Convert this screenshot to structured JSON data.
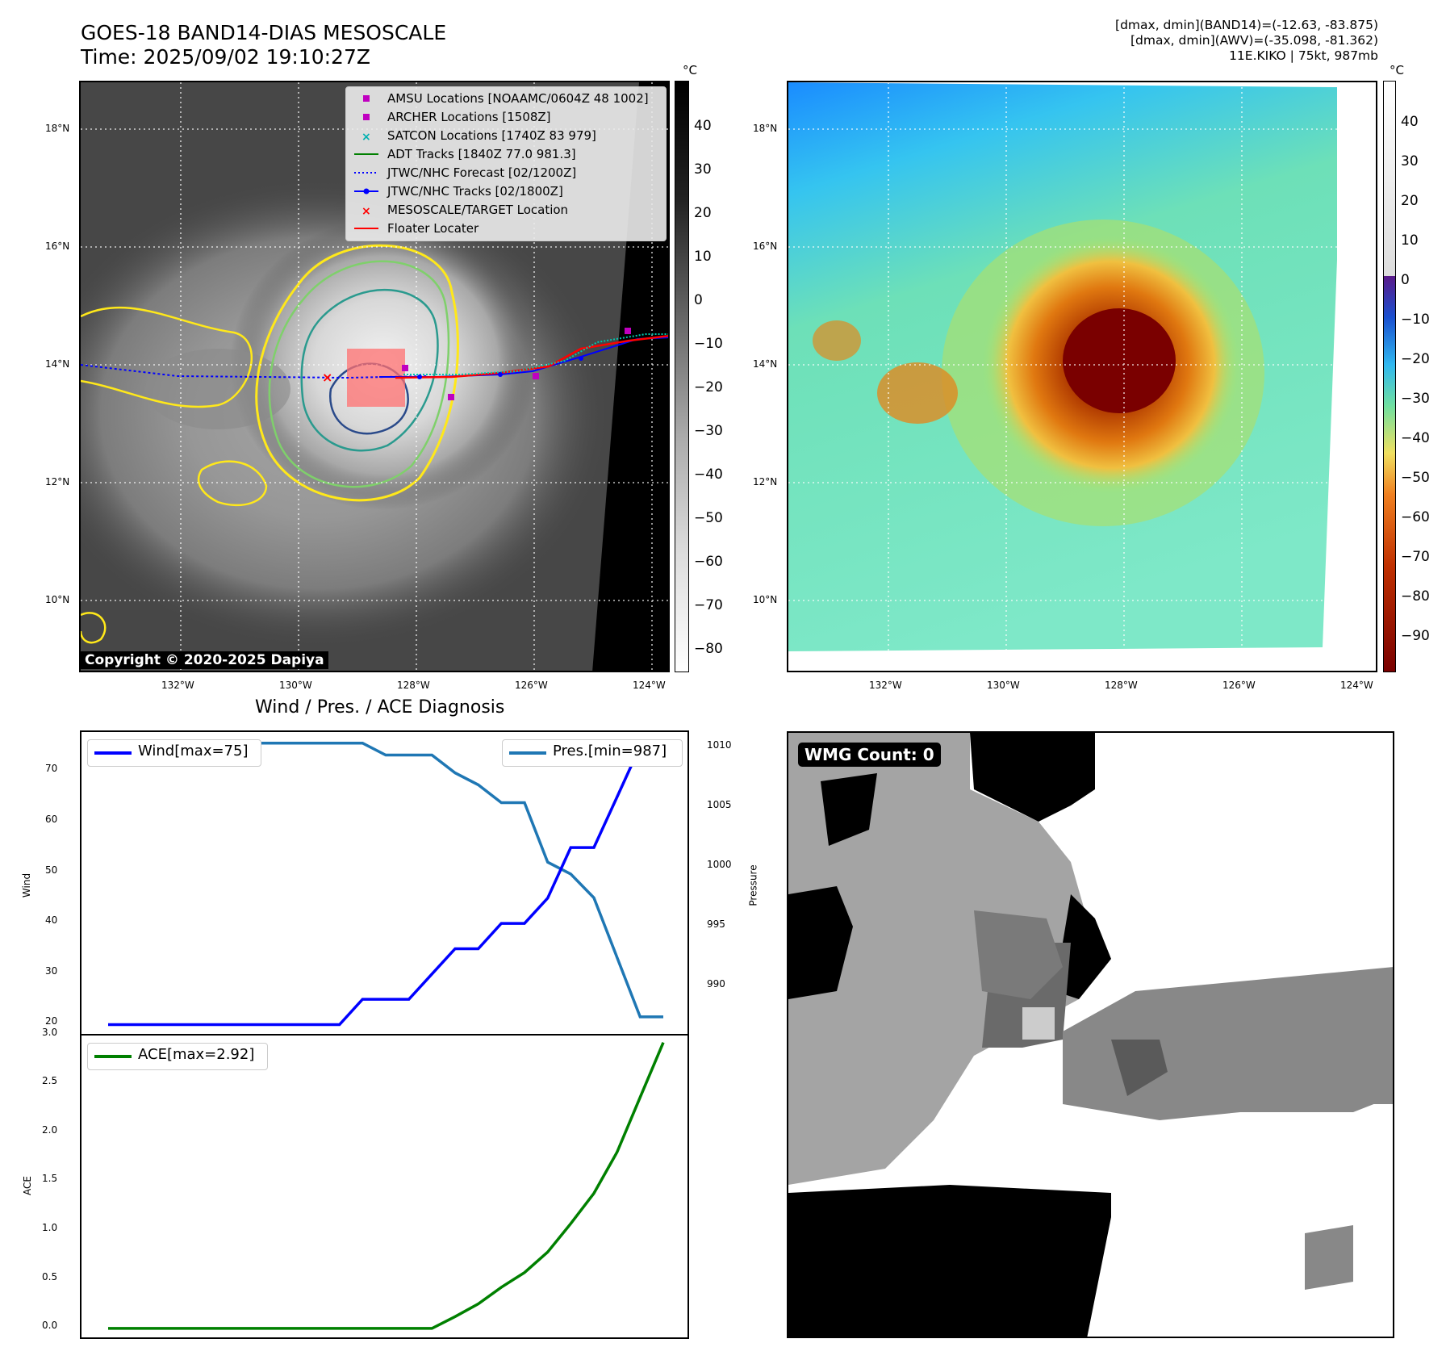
{
  "header": {
    "title_line1": "GOES-18 BAND14-DIAS MESOSCALE",
    "title_line2": "Time: 2025/09/02 19:10:27Z",
    "right_line1": "[dmax, dmin](BAND14)=(-12.63, -83.875)",
    "right_line2": "[dmax, dmin](AWV)=(-35.098, -81.362)",
    "right_line3": "11E.KIKO | 75kt, 987mb"
  },
  "map_axes": {
    "lat_labels": [
      "18°N",
      "16°N",
      "14°N",
      "12°N",
      "10°N"
    ],
    "lon_labels": [
      "132°W",
      "130°W",
      "128°W",
      "126°W",
      "124°W"
    ]
  },
  "ir_panel": {
    "legend": [
      {
        "label": "AMSU Locations [NOAAMC/0604Z 48 1002]",
        "color": "#c000c0",
        "marker": "square"
      },
      {
        "label": "ARCHER Locations [1508Z]",
        "color": "#c000c0",
        "marker": "square"
      },
      {
        "label": "SATCON Locations [1740Z 83 979]",
        "color": "#00b0b0",
        "marker": "x"
      },
      {
        "label": "ADT Tracks [1840Z 77.0 981.3]",
        "color": "#008000",
        "marker": "line"
      },
      {
        "label": "JTWC/NHC Forecast [02/1200Z]",
        "color": "#0000ff",
        "marker": "dotted"
      },
      {
        "label": "JTWC/NHC Tracks [02/1800Z]",
        "color": "#0000ff",
        "marker": "line-dot"
      },
      {
        "label": "MESOSCALE/TARGET Location",
        "color": "#ff0000",
        "marker": "x"
      },
      {
        "label": "Floater Locater",
        "color": "#ff0000",
        "marker": "line"
      }
    ],
    "copyright": "Copyright © 2020-2025 Dapiya",
    "colorbar_unit": "°C",
    "colorbar_ticks": [
      "40",
      "30",
      "20",
      "10",
      "0",
      "−10",
      "−20",
      "−30",
      "−40",
      "−50",
      "−60",
      "−70",
      "−80"
    ]
  },
  "awv_panel": {
    "colorbar_unit": "°C",
    "colorbar_ticks": [
      "40",
      "30",
      "20",
      "10",
      "0",
      "−10",
      "−20",
      "−30",
      "−40",
      "−50",
      "−60",
      "−70",
      "−80",
      "−90"
    ]
  },
  "wmg_panel": {
    "label": "WMG Count: 0"
  },
  "chart_data": [
    {
      "type": "line",
      "title": "Wind / Pres. / ACE Diagnosis",
      "x": [
        0,
        1,
        2,
        3,
        4,
        5,
        6,
        7,
        8,
        9,
        10,
        11,
        12,
        13,
        14,
        15,
        16,
        17,
        18,
        19,
        20,
        21,
        22,
        23,
        24
      ],
      "series": [
        {
          "name": "Wind[max=75]",
          "axis": "left",
          "color": "#0000ff",
          "values": [
            20,
            20,
            20,
            20,
            20,
            20,
            20,
            20,
            20,
            20,
            20,
            25,
            25,
            25,
            30,
            35,
            35,
            40,
            40,
            45,
            55,
            55,
            65,
            75,
            75
          ]
        },
        {
          "name": "Pres.[min=987]",
          "axis": "right",
          "color": "#1f77b4",
          "values": [
            1010,
            1010,
            1010,
            1010,
            1010,
            1010,
            1010,
            1010,
            1010,
            1010,
            1010,
            1010,
            1009,
            1009,
            1009,
            1007.5,
            1006.5,
            1005,
            1005,
            1000,
            999,
            997,
            992,
            987,
            987
          ]
        }
      ],
      "ylabel": "Wind",
      "ylabel_right": "Pressure",
      "yticks_left": [
        "20",
        "30",
        "40",
        "50",
        "60",
        "70"
      ],
      "yticks_right": [
        "990",
        "995",
        "1000",
        "1005",
        "1010"
      ],
      "ylim": [
        18,
        78
      ],
      "ylim_right": [
        985.5,
        1011
      ]
    },
    {
      "type": "line",
      "x": [
        0,
        1,
        2,
        3,
        4,
        5,
        6,
        7,
        8,
        9,
        10,
        11,
        12,
        13,
        14,
        15,
        16,
        17,
        18,
        19,
        20,
        21,
        22,
        23,
        24
      ],
      "series": [
        {
          "name": "ACE[max=2.92]",
          "color": "#008000",
          "values": [
            0,
            0,
            0,
            0,
            0,
            0,
            0,
            0,
            0,
            0,
            0,
            0,
            0,
            0,
            0,
            0.12,
            0.25,
            0.42,
            0.57,
            0.78,
            1.07,
            1.38,
            1.8,
            2.36,
            2.92
          ]
        }
      ],
      "ylabel": "ACE",
      "yticks": [
        "0.0",
        "0.5",
        "1.0",
        "1.5",
        "2.0",
        "2.5",
        "3.0"
      ],
      "ylim": [
        -0.1,
        3.0
      ]
    }
  ]
}
